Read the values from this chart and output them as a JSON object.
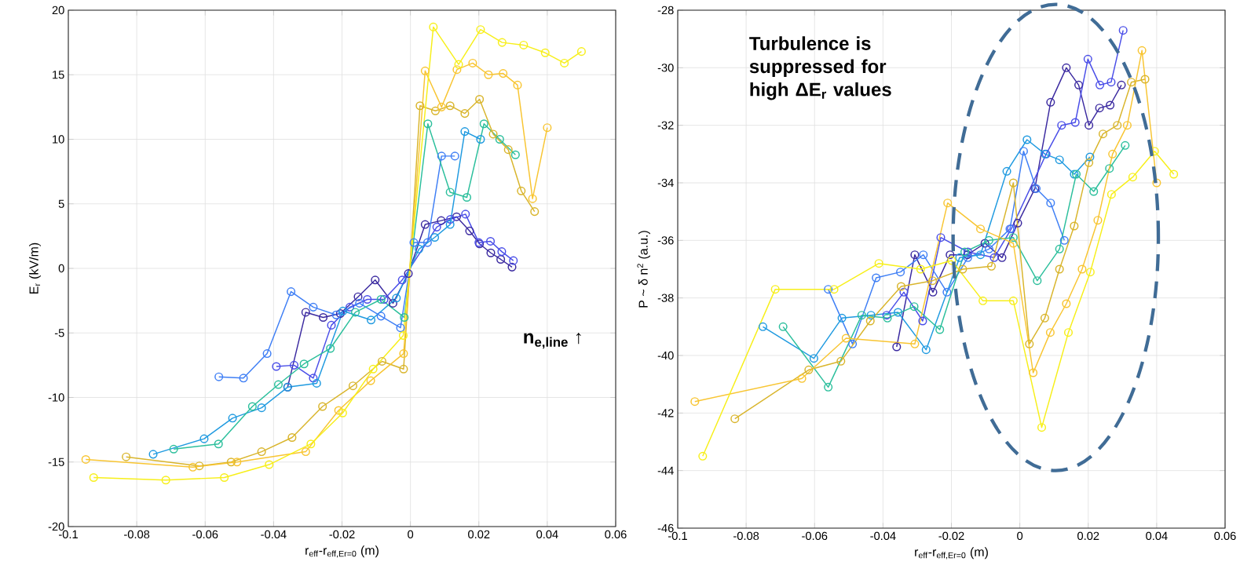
{
  "chart_data": [
    {
      "type": "line",
      "xlabel": "r$_{eff}$-r$_{eff,Er=0}$ (m)",
      "ylabel": "E$_{r}$ (kV/m)",
      "marker": "circle",
      "grid": true,
      "xlim": [
        -0.1,
        0.06
      ],
      "xticks": [
        -0.1,
        -0.08,
        -0.06,
        -0.04,
        -0.02,
        0,
        0.02,
        0.04,
        0.06
      ],
      "ylim": [
        -20,
        20
      ],
      "yticks": [
        -20,
        -15,
        -10,
        -5,
        0,
        5,
        10,
        15,
        20
      ],
      "annotations": [
        "**n$_{e,line}$ ↑**"
      ],
      "series": [
        {
          "color": "#3b2aa0",
          "x": [
            -0.0359,
            -0.0306,
            -0.0255,
            -0.0205,
            -0.0153,
            -0.0103,
            -0.0051,
            -0.0006,
            0.0043,
            0.009,
            0.0135,
            0.0173,
            0.0202,
            0.0235,
            0.0264,
            0.0297
          ],
          "values": [
            -9.2,
            -3.4,
            -3.8,
            -3.5,
            -2.2,
            -0.9,
            -2.7,
            -0.4,
            3.4,
            3.7,
            4.0,
            2.9,
            1.9,
            1.2,
            0.7,
            0.1
          ]
        },
        {
          "color": "#4a4ee8",
          "x": [
            -0.0392,
            -0.034,
            -0.0284,
            -0.0231,
            -0.0177,
            -0.0126,
            -0.0077,
            -0.0024,
            0.0077,
            0.0117,
            0.0161,
            0.02,
            0.0234,
            0.0267,
            0.0301
          ],
          "values": [
            -7.6,
            -7.5,
            -8.5,
            -4.4,
            -3.0,
            -2.4,
            -2.4,
            -0.9,
            3.2,
            3.8,
            4.2,
            2.0,
            2.1,
            1.3,
            0.6
          ]
        },
        {
          "color": "#3f7ff5",
          "x": [
            -0.056,
            -0.0488,
            -0.0419,
            -0.0349,
            -0.0284,
            -0.0217,
            -0.0149,
            -0.0086,
            -0.0029,
            0.001,
            0.005,
            0.0091,
            0.013
          ],
          "values": [
            -8.4,
            -8.5,
            -6.6,
            -1.8,
            -3.0,
            -3.6,
            -2.7,
            -3.7,
            -4.6,
            2.0,
            2.0,
            8.7,
            8.7
          ]
        },
        {
          "color": "#1f9ae0",
          "x": [
            -0.0752,
            -0.0603,
            -0.052,
            -0.0435,
            -0.0359,
            -0.0274,
            -0.0197,
            -0.0115,
            -0.0041,
            0.0025,
            0.0071,
            0.0116,
            0.0159,
            0.0205
          ],
          "values": [
            -14.4,
            -13.2,
            -11.6,
            -10.8,
            -9.2,
            -8.9,
            -3.3,
            -4.0,
            -2.3,
            1.5,
            2.4,
            3.4,
            10.6,
            10.0
          ]
        },
        {
          "color": "#2cbf9c",
          "x": [
            -0.0692,
            -0.0561,
            -0.0462,
            -0.0386,
            -0.0311,
            -0.0234,
            -0.0161,
            -0.0086,
            -0.0018,
            0.0051,
            0.0116,
            0.0165,
            0.0215,
            0.0261,
            0.0307
          ],
          "values": [
            -14.0,
            -13.6,
            -10.7,
            -9.0,
            -7.4,
            -6.2,
            -3.4,
            -2.4,
            -3.8,
            11.2,
            5.9,
            5.5,
            11.2,
            10.0,
            8.8
          ]
        },
        {
          "color": "#d9b52c",
          "x": [
            -0.0831,
            -0.0617,
            -0.0524,
            -0.0435,
            -0.0346,
            -0.0257,
            -0.0168,
            -0.0083,
            -0.002,
            0.0028,
            0.0073,
            0.0116,
            0.0159,
            0.0202,
            0.0242,
            0.0286,
            0.0324,
            0.0363
          ],
          "values": [
            -14.6,
            -15.3,
            -15.0,
            -14.2,
            -13.1,
            -10.7,
            -9.1,
            -7.2,
            -7.8,
            12.6,
            12.2,
            12.6,
            12.0,
            13.1,
            10.4,
            9.2,
            6.0,
            4.4
          ]
        },
        {
          "color": "#f8c532",
          "x": [
            -0.0949,
            -0.0636,
            -0.0507,
            -0.0306,
            -0.021,
            -0.0116,
            -0.002,
            0.0043,
            0.0091,
            0.0136,
            0.0182,
            0.0228,
            0.0271,
            0.0313,
            0.0357,
            0.04
          ],
          "values": [
            -14.8,
            -15.4,
            -15.0,
            -14.2,
            -11.0,
            -8.7,
            -6.6,
            15.3,
            12.5,
            15.4,
            15.9,
            15.0,
            15.1,
            14.2,
            5.4,
            10.9
          ]
        },
        {
          "color": "#f7ef1a",
          "x": [
            -0.0926,
            -0.0715,
            -0.0544,
            -0.0413,
            -0.0291,
            -0.0198,
            -0.0109,
            -0.0021,
            0.0067,
            0.0141,
            0.0205,
            0.0268,
            0.0331,
            0.0394,
            0.045,
            0.05
          ],
          "values": [
            -16.2,
            -16.4,
            -16.2,
            -15.2,
            -13.6,
            -11.2,
            -7.8,
            -5.2,
            18.7,
            15.8,
            18.5,
            17.5,
            17.3,
            16.7,
            15.9,
            16.8
          ]
        }
      ]
    },
    {
      "type": "line",
      "xlabel": "r$_{eff}$-r$_{eff,Er=0}$ (m)",
      "ylabel": "P ~ δ n$^{2}$ (a.u.)",
      "marker": "circle",
      "grid": true,
      "xlim": [
        -0.1,
        0.06
      ],
      "xticks": [
        -0.1,
        -0.08,
        -0.06,
        -0.04,
        -0.02,
        0,
        0.02,
        0.04,
        0.06
      ],
      "ylim": [
        -46,
        -28
      ],
      "yticks": [
        -46,
        -44,
        -42,
        -40,
        -38,
        -36,
        -34,
        -32,
        -30,
        -28
      ],
      "annotations": [
        "**Turbulence is suppressed for high ΔE$_{r}$ values**"
      ],
      "series": [
        {
          "color": "#3b2aa0",
          "x": [
            -0.036,
            -0.0307,
            -0.0254,
            -0.0204,
            -0.0153,
            -0.0102,
            -0.0052,
            -0.0006,
            0.0044,
            0.009,
            0.0136,
            0.0172,
            0.0202,
            0.0233,
            0.0264,
            0.0297
          ],
          "values": [
            -39.7,
            -36.5,
            -37.8,
            -36.5,
            -36.5,
            -36.1,
            -36.6,
            -35.4,
            -34.2,
            -31.2,
            -30.0,
            -30.6,
            -32.0,
            -31.4,
            -31.3,
            -30.6
          ]
        },
        {
          "color": "#4a4ee8",
          "x": [
            -0.0389,
            -0.0339,
            -0.0284,
            -0.0231,
            -0.0152,
            -0.0075,
            -0.0025,
            0.0077,
            0.0122,
            0.0162,
            0.0199,
            0.0234,
            0.0267,
            0.0302
          ],
          "values": [
            -38.6,
            -37.8,
            -38.8,
            -35.9,
            -36.4,
            -36.6,
            -35.6,
            -33.0,
            -32.0,
            -31.9,
            -29.7,
            -30.6,
            -30.5,
            -28.7
          ]
        },
        {
          "color": "#3f7ff5",
          "x": [
            -0.056,
            -0.0489,
            -0.042,
            -0.0349,
            -0.0282,
            -0.0213,
            -0.0152,
            -0.009,
            -0.0029,
            0.0011,
            0.0048,
            0.009,
            0.013
          ],
          "values": [
            -37.7,
            -39.6,
            -37.3,
            -37.1,
            -36.5,
            -37.8,
            -36.6,
            -36.3,
            -35.6,
            -32.9,
            -34.2,
            -34.7,
            -36.0
          ]
        },
        {
          "color": "#1f9ae0",
          "x": [
            -0.0751,
            -0.0602,
            -0.052,
            -0.0435,
            -0.0356,
            -0.0274,
            -0.0176,
            -0.0115,
            -0.0038,
            0.0021,
            0.0074,
            0.0116,
            0.0159,
            0.0205
          ],
          "values": [
            -39.0,
            -40.1,
            -38.7,
            -38.6,
            -38.5,
            -39.8,
            -36.6,
            -36.5,
            -33.6,
            -32.5,
            -33.0,
            -33.2,
            -33.7,
            -33.1
          ]
        },
        {
          "color": "#2cbf9c",
          "x": [
            -0.0692,
            -0.056,
            -0.0462,
            -0.0387,
            -0.0309,
            -0.0234,
            -0.0161,
            -0.009,
            -0.0019,
            0.0051,
            0.0116,
            0.0165,
            0.0216,
            0.0262,
            0.0308
          ],
          "values": [
            -39.0,
            -41.1,
            -38.6,
            -38.7,
            -38.3,
            -39.1,
            -36.4,
            -36.0,
            -35.9,
            -37.4,
            -36.3,
            -33.7,
            -34.3,
            -33.5,
            -32.7
          ]
        },
        {
          "color": "#d9b52c",
          "x": [
            -0.0833,
            -0.0617,
            -0.0523,
            -0.0437,
            -0.0347,
            -0.0255,
            -0.0167,
            -0.0083,
            -0.0019,
            0.0028,
            0.0073,
            0.0116,
            0.0159,
            0.0202,
            0.0243,
            0.0285,
            0.0326,
            0.0366
          ],
          "values": [
            -42.2,
            -40.5,
            -40.2,
            -38.8,
            -37.6,
            -37.4,
            -37.0,
            -36.9,
            -34.0,
            -39.6,
            -38.7,
            -37.0,
            -35.5,
            -33.3,
            -32.3,
            -32.0,
            -30.5,
            -30.4
          ]
        },
        {
          "color": "#f8c532",
          "x": [
            -0.095,
            -0.0637,
            -0.0508,
            -0.0307,
            -0.0211,
            -0.0115,
            -0.0019,
            0.0039,
            0.0089,
            0.0136,
            0.0182,
            0.0228,
            0.0271,
            0.0314,
            0.0357,
            0.04
          ],
          "values": [
            -41.6,
            -40.8,
            -39.4,
            -39.6,
            -34.7,
            -35.6,
            -36.1,
            -40.6,
            -39.2,
            -38.2,
            -37.0,
            -35.3,
            -33.0,
            -32.0,
            -29.4,
            -34.0
          ]
        },
        {
          "color": "#f7ef1a",
          "x": [
            -0.0927,
            -0.0715,
            -0.0543,
            -0.0412,
            -0.029,
            -0.0199,
            -0.0108,
            -0.0019,
            0.0064,
            0.0142,
            0.0206,
            0.0268,
            0.033,
            0.0394,
            0.045
          ],
          "values": [
            -43.5,
            -37.7,
            -37.7,
            -36.8,
            -37.0,
            -36.7,
            -38.1,
            -38.1,
            -42.5,
            -39.2,
            -37.1,
            -34.4,
            -33.8,
            -32.9,
            -33.7
          ]
        }
      ]
    }
  ]
}
